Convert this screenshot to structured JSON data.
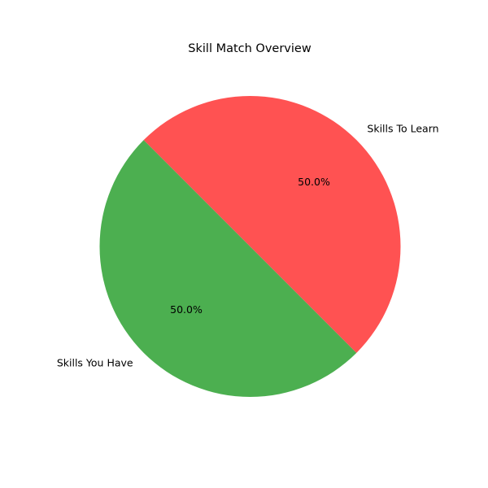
{
  "chart_data": {
    "type": "pie",
    "title": "Skill Match Overview",
    "categories": [
      "Skills You Have",
      "Skills To Learn"
    ],
    "values": [
      50,
      50
    ],
    "percent_labels": [
      "50.0%",
      "50.0%"
    ],
    "colors": [
      "#4caf50",
      "#ff5252"
    ],
    "start_angle_deg": 135,
    "direction": "counterclockwise",
    "legend": "none"
  }
}
